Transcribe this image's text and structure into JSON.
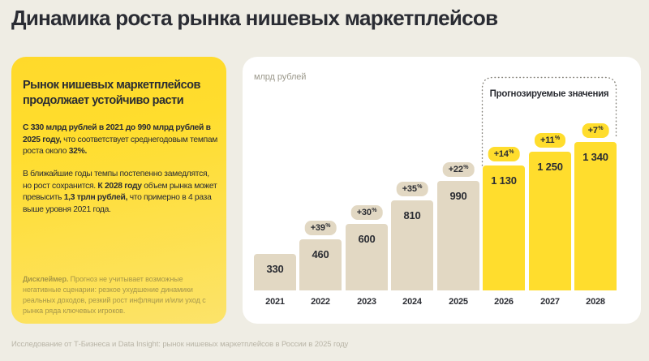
{
  "page": {
    "title": "Динамика роста рынка нишевых маркетплейсов",
    "footer": "Исследование от Т-Бизнеса и Data Insight: рынок нишевых маркетплейсов в России в 2025 году"
  },
  "left_card": {
    "heading": "Рынок нишевых маркетплейсов продолжает устойчиво расти",
    "para1": [
      {
        "text": "С 330 млрд рублей в 2021 до 990 млрд рублей в 2025 году, ",
        "bold": true
      },
      {
        "text": "что соответствует среднегодовым темпам роста около ",
        "bold": false
      },
      {
        "text": "32%.",
        "bold": true
      }
    ],
    "para2": [
      {
        "text": "В ближайшие годы темпы постепенно замедлятся, но рост сохранится. ",
        "bold": false
      },
      {
        "text": "К 2028 году ",
        "bold": true
      },
      {
        "text": "объем рынка может превысить ",
        "bold": false
      },
      {
        "text": "1,3 трлн рублей,",
        "bold": true
      },
      {
        "text": " что примерно в 4 раза выше уровня 2021 года.",
        "bold": false
      }
    ],
    "disclaimer": [
      {
        "text": "Дисклеймер. ",
        "bold": true
      },
      {
        "text": "Прогноз не учитывает возможные негативные сценарии: резкое ухудшение динамики реальных доходов, резкий рост инфляции и/или уход с рынка ряда ключевых игроков.",
        "bold": false
      }
    ]
  },
  "chart_data": {
    "type": "bar",
    "title": "Динамика роста рынка нишевых маркетплейсов",
    "ylabel": "млрд рублей",
    "unit_label": "млрд рублей",
    "forecast_label": "Прогнозируемые значения",
    "categories": [
      "2021",
      "2022",
      "2023",
      "2024",
      "2025",
      "2026",
      "2027",
      "2028"
    ],
    "values": [
      330,
      460,
      600,
      810,
      990,
      1130,
      1250,
      1340
    ],
    "values_display": [
      "330",
      "460",
      "600",
      "810",
      "990",
      "1 130",
      "1 250",
      "1 340"
    ],
    "growth_pct": [
      null,
      "+39",
      "+30",
      "+35",
      "+22",
      "+14",
      "+11",
      "+7"
    ],
    "pct_suffix": "%",
    "forecast": [
      false,
      false,
      false,
      false,
      false,
      true,
      true,
      true
    ],
    "ylim": [
      0,
      1400
    ],
    "grid": false,
    "y_axis_ticks_visible": false,
    "colors": {
      "actual": "#e2d8c3",
      "forecast": "#ffdd2d",
      "text": "#2b2d33"
    }
  }
}
